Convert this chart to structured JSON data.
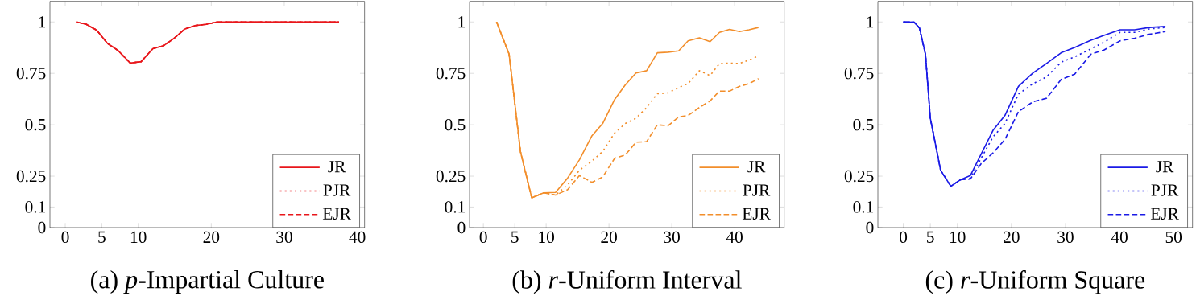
{
  "chart_data": [
    {
      "type": "line",
      "title": "(a) *p*-Impartial Culture",
      "xlim": [
        -2.1,
        41.0
      ],
      "ylim": [
        0,
        1.1
      ],
      "xticks": [
        0,
        5,
        10,
        20,
        30,
        40
      ],
      "yticks": [
        0,
        0.1,
        0.25,
        0.5,
        0.75,
        1
      ],
      "legend": "bottom right",
      "series": [
        {
          "name": "JR",
          "color": "#e8161b",
          "line_style": "solid",
          "x": [
            1.5,
            2.9,
            4.3,
            5.8,
            7.2,
            8.9,
            10.4,
            12,
            13.5,
            14.9,
            16.4,
            17.9,
            19.3,
            20.8,
            25,
            30,
            37.5
          ],
          "values": [
            1.0,
            0.988,
            0.96,
            0.895,
            0.862,
            0.8,
            0.807,
            0.87,
            0.885,
            0.92,
            0.966,
            0.983,
            0.988,
            1.0,
            1.0,
            1.0,
            1.0
          ]
        },
        {
          "name": "PJR",
          "color": "#e8161b",
          "line_style": "dotted",
          "x": [
            1.5,
            2.9,
            4.3,
            5.8,
            7.2,
            8.9,
            10.4,
            12,
            13.5,
            14.9,
            16.4,
            17.9,
            19.3,
            20.8,
            25,
            30,
            37.5
          ],
          "values": [
            1.0,
            0.988,
            0.96,
            0.895,
            0.862,
            0.8,
            0.807,
            0.87,
            0.885,
            0.92,
            0.966,
            0.983,
            0.988,
            1.0,
            1.0,
            1.0,
            1.0
          ]
        },
        {
          "name": "EJR",
          "color": "#e8161b",
          "line_style": "dashed",
          "x": [
            1.5,
            2.9,
            4.3,
            5.8,
            7.2,
            8.9,
            10.4,
            12,
            13.5,
            14.9,
            16.4,
            17.9,
            19.3,
            20.8,
            25,
            30,
            37.5
          ],
          "values": [
            1.0,
            0.988,
            0.96,
            0.895,
            0.862,
            0.8,
            0.807,
            0.87,
            0.885,
            0.92,
            0.966,
            0.983,
            0.988,
            1.0,
            1.0,
            1.0,
            1.0
          ]
        }
      ]
    },
    {
      "type": "line",
      "title": "(b) *r*-Uniform Interval",
      "xlim": [
        -2.2,
        47.9
      ],
      "ylim": [
        0,
        1.1
      ],
      "xticks": [
        0,
        5,
        10,
        20,
        30,
        40
      ],
      "yticks": [
        0,
        0.1,
        0.25,
        0.5,
        0.75,
        1
      ],
      "legend": "bottom right",
      "series": [
        {
          "name": "JR",
          "color": "#f28e2b",
          "line_style": "solid",
          "x": [
            2.1,
            4.1,
            5.9,
            7.7,
            9.6,
            11.5,
            13.4,
            15.3,
            17.3,
            19.0,
            20.9,
            22.6,
            24.3,
            26.0,
            27.7,
            29.4,
            31.1,
            32.6,
            34.4,
            36.1,
            37.6,
            39.2,
            40.8,
            42.3,
            43.8
          ],
          "values": [
            1.0,
            0.843,
            0.37,
            0.145,
            0.169,
            0.171,
            0.24,
            0.33,
            0.447,
            0.506,
            0.623,
            0.694,
            0.752,
            0.763,
            0.85,
            0.853,
            0.859,
            0.908,
            0.923,
            0.904,
            0.949,
            0.964,
            0.953,
            0.962,
            0.973
          ]
        },
        {
          "name": "PJR",
          "color": "#f28e2b",
          "line_style": "dotted",
          "x": [
            2.1,
            4.1,
            5.9,
            7.7,
            9.6,
            11.5,
            13.4,
            15.3,
            17.3,
            19.0,
            20.9,
            22.6,
            24.3,
            26.0,
            27.7,
            29.4,
            31.1,
            32.6,
            34.4,
            36.1,
            37.6,
            39.2,
            40.8,
            42.3,
            43.8
          ],
          "values": [
            1.0,
            0.843,
            0.37,
            0.145,
            0.169,
            0.158,
            0.207,
            0.279,
            0.324,
            0.37,
            0.46,
            0.506,
            0.532,
            0.584,
            0.651,
            0.655,
            0.681,
            0.7,
            0.763,
            0.739,
            0.798,
            0.8,
            0.798,
            0.815,
            0.834
          ]
        },
        {
          "name": "EJR",
          "color": "#f28e2b",
          "line_style": "dashed",
          "x": [
            2.1,
            4.1,
            5.9,
            7.7,
            9.6,
            11.5,
            13.4,
            15.3,
            17.3,
            19.0,
            20.9,
            22.6,
            24.3,
            26.0,
            27.7,
            29.4,
            31.1,
            32.6,
            34.4,
            36.1,
            37.6,
            39.2,
            40.8,
            42.3,
            43.8
          ],
          "values": [
            1.0,
            0.843,
            0.37,
            0.145,
            0.169,
            0.158,
            0.184,
            0.253,
            0.22,
            0.246,
            0.337,
            0.353,
            0.415,
            0.418,
            0.5,
            0.495,
            0.538,
            0.545,
            0.584,
            0.616,
            0.664,
            0.664,
            0.687,
            0.7,
            0.724
          ]
        }
      ]
    },
    {
      "type": "line",
      "title": "(c) *r*-Uniform Square",
      "xlim": [
        -4.7,
        53.5
      ],
      "ylim": [
        0,
        1.1
      ],
      "xticks": [
        0,
        5,
        10,
        20,
        30,
        40,
        50
      ],
      "yticks": [
        0,
        0.1,
        0.25,
        0.5,
        0.75,
        1
      ],
      "legend": "bottom right",
      "series": [
        {
          "name": "JR",
          "color": "#1a1ae6",
          "line_style": "solid",
          "x": [
            0,
            2.0,
            3.0,
            4.1,
            5.0,
            6.9,
            8.8,
            10.6,
            12.4,
            14.4,
            16.6,
            18.8,
            21.3,
            24.0,
            26.5,
            29.2,
            31.7,
            34.7,
            37.1,
            40.1,
            42.8,
            45.5,
            48.5
          ],
          "values": [
            1.0,
            0.999,
            0.97,
            0.843,
            0.532,
            0.279,
            0.201,
            0.233,
            0.253,
            0.357,
            0.473,
            0.545,
            0.687,
            0.752,
            0.798,
            0.85,
            0.876,
            0.911,
            0.934,
            0.962,
            0.962,
            0.973,
            0.978
          ]
        },
        {
          "name": "PJR",
          "color": "#1a1ae6",
          "line_style": "dotted",
          "x": [
            0,
            2.0,
            3.0,
            4.1,
            5.0,
            6.9,
            8.8,
            10.6,
            12.4,
            14.4,
            16.6,
            18.8,
            21.3,
            24.0,
            26.5,
            29.2,
            31.7,
            34.7,
            37.1,
            40.1,
            42.8,
            45.5,
            48.5
          ],
          "values": [
            1.0,
            0.999,
            0.97,
            0.843,
            0.532,
            0.279,
            0.201,
            0.233,
            0.24,
            0.337,
            0.441,
            0.506,
            0.649,
            0.7,
            0.733,
            0.804,
            0.83,
            0.869,
            0.901,
            0.949,
            0.949,
            0.966,
            0.973
          ]
        },
        {
          "name": "EJR",
          "color": "#1a1ae6",
          "line_style": "dashed",
          "x": [
            0,
            2.0,
            3.0,
            4.1,
            5.0,
            6.9,
            8.8,
            10.6,
            12.4,
            14.4,
            16.6,
            18.8,
            21.3,
            24.0,
            26.5,
            29.2,
            31.7,
            34.7,
            37.1,
            40.1,
            42.8,
            45.5,
            48.5
          ],
          "values": [
            1.0,
            0.999,
            0.97,
            0.843,
            0.532,
            0.279,
            0.201,
            0.233,
            0.236,
            0.311,
            0.363,
            0.428,
            0.564,
            0.612,
            0.629,
            0.72,
            0.746,
            0.843,
            0.863,
            0.908,
            0.921,
            0.94,
            0.953
          ]
        }
      ]
    }
  ]
}
